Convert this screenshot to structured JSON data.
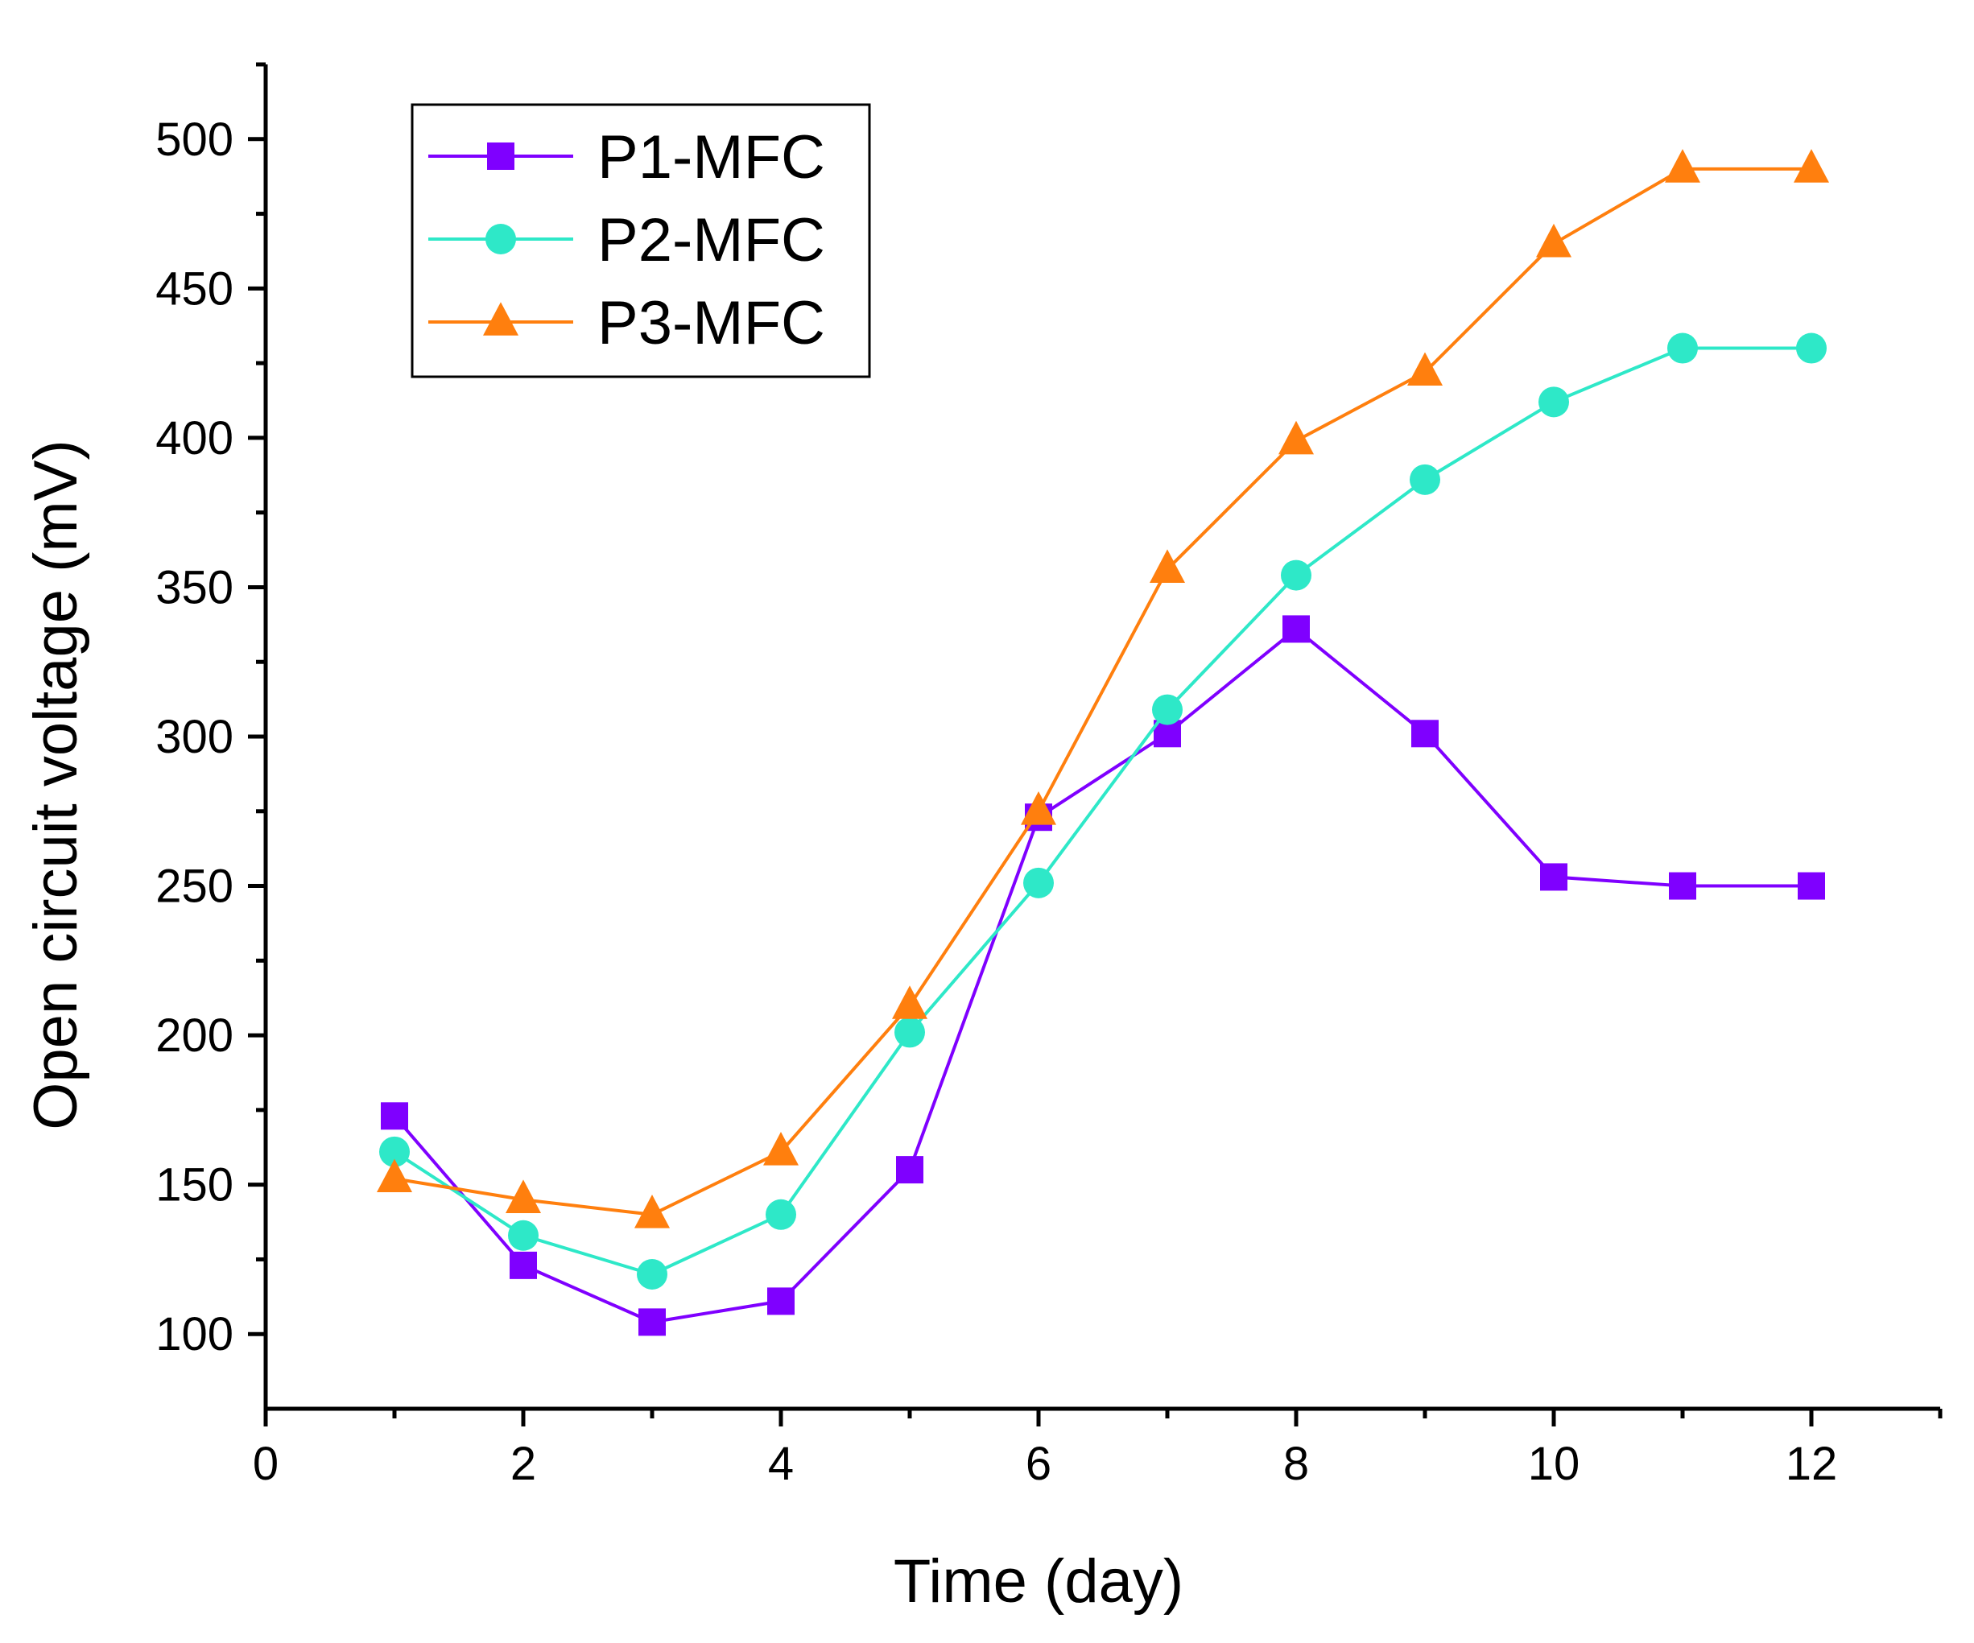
{
  "chart_data": {
    "type": "line",
    "title": "",
    "xlabel": "Time (day)",
    "ylabel": "Open circuit voltage (mV)",
    "xlim": [
      0,
      13
    ],
    "ylim": [
      75,
      525
    ],
    "xticks": [
      0,
      2,
      4,
      6,
      8,
      10,
      12
    ],
    "xminor": [
      1,
      3,
      5,
      7,
      9,
      11,
      13
    ],
    "yticks": [
      100,
      150,
      200,
      250,
      300,
      350,
      400,
      450,
      500
    ],
    "yminor": [
      125,
      175,
      225,
      275,
      325,
      375,
      425,
      475,
      525
    ],
    "grid": false,
    "legend_position": "top-left",
    "x": [
      1,
      2,
      3,
      4,
      5,
      6,
      7,
      8,
      9,
      10,
      11,
      12
    ],
    "series": [
      {
        "name": "P1-MFC",
        "color": "#7f00ff",
        "marker": "square",
        "values": [
          173,
          123,
          104,
          111,
          155,
          273,
          301,
          336,
          301,
          253,
          250,
          250
        ]
      },
      {
        "name": "P2-MFC",
        "color": "#2ee8c8",
        "marker": "circle",
        "values": [
          161,
          133,
          120,
          140,
          201,
          251,
          309,
          354,
          386,
          412,
          430,
          430
        ]
      },
      {
        "name": "P3-MFC",
        "color": "#ff7f0e",
        "marker": "triangle",
        "values": [
          152,
          145,
          140,
          161,
          210,
          275,
          356,
          399,
          422,
          465,
          490,
          490
        ]
      }
    ]
  }
}
